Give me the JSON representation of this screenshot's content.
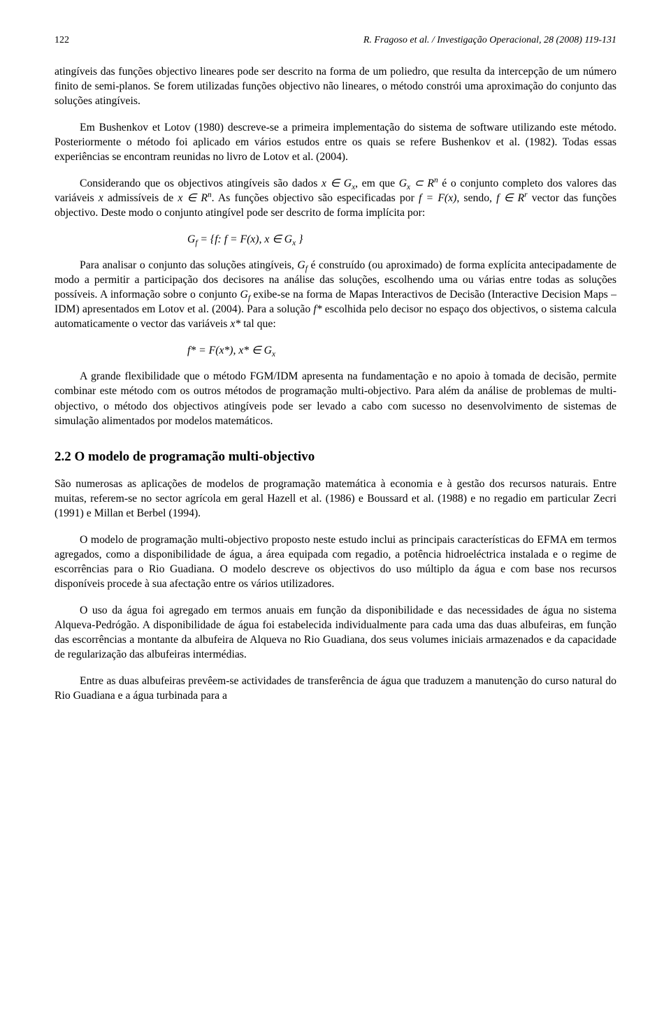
{
  "header": {
    "page_number": "122",
    "running_title": "R. Fragoso et al. / Investigação Operacional, 28 (2008) 119-131"
  },
  "paragraphs": {
    "p1": "atingíveis das funções objectivo lineares pode ser descrito na forma de um poliedro, que resulta da intercepção de um número finito de semi-planos. Se forem utilizadas funções objectivo não lineares, o método constrói uma aproximação do conjunto das soluções atingíveis.",
    "p2": "Em Bushenkov et Lotov (1980) descreve-se a primeira implementação do sistema de software utilizando este método. Posteriormente o método foi aplicado em vários estudos entre os quais se refere Bushenkov et al. (1982). Todas essas experiências se encontram reunidas no livro de Lotov et al. (2004).",
    "p5": "Para analisar o conjunto das soluções atingíveis, ",
    "p5b": " é construído (ou aproximado) de forma explícita antecipadamente de modo a permitir a participação dos decisores na análise das soluções, escolhendo uma ou várias entre todas as soluções possíveis. A informação sobre o conjunto ",
    "p5c": " exibe-se na forma de Mapas Interactivos de Decisão (Interactive Decision Maps – IDM) apresentados em Lotov et al. (2004). Para a solução ",
    "p5d": " escolhida pelo decisor no espaço dos objectivos, o sistema calcula automaticamente o vector das variáveis ",
    "p5e": " tal que:",
    "p7": "A grande flexibilidade que o método FGM/IDM apresenta na fundamentação e no apoio à tomada de decisão, permite combinar este método com os outros métodos de programação multi-objectivo. Para além da análise de problemas de multi-objectivo, o método dos objectivos atingíveis pode ser levado a cabo com sucesso no desenvolvimento de sistemas de simulação alimentados por modelos matemáticos.",
    "sec_title": "2.2  O modelo de programação multi-objectivo",
    "p8": "São numerosas as aplicações de modelos de programação matemática à economia e à gestão dos recursos naturais. Entre muitas, referem-se no sector agrícola em geral Hazell et al. (1986) e Boussard et al. (1988) e no regadio em particular Zecri (1991) e Millan et Berbel (1994).",
    "p9": "O modelo de programação multi-objectivo proposto neste estudo inclui as principais características do EFMA em termos agregados, como a disponibilidade de água, a área equipada com regadio, a potência hidroeléctrica instalada e o regime de escorrências para o Rio Guadiana. O modelo descreve os objectivos do uso múltiplo da água e com base nos recursos disponíveis procede à sua afectação entre os vários utilizadores.",
    "p10": "O uso da água foi agregado em termos anuais em função da disponibilidade e das necessidades de água no sistema Alqueva-Pedrógão. A disponibilidade de água foi estabelecida individualmente para cada uma das duas albufeiras, em função das escorrências a montante da albufeira de Alqueva no Rio Guadiana, dos seus volumes iniciais armazenados e da capacidade de regularização das albufeiras intermédias.",
    "p11": "Entre as duas albufeiras prevêem-se actividades de transferência de água que traduzem a manutenção do curso natural do Rio Guadiana e a água turbinada para a"
  },
  "inline": {
    "p3_a": "Considerando que os objectivos atingíveis são dados ",
    "p3_b": ", em que ",
    "p3_c": " é o conjunto completo dos valores das variáveis ",
    "p3_d": " admissíveis de ",
    "p3_e": ". As funções objectivo são especificadas por ",
    "p3_f": ", sendo, ",
    "p3_g": " vector das funções objectivo. Deste modo o conjunto atingível pode ser descrito de forma implícita por:",
    "x": "x",
    "Gx": "G",
    "xsub": "x",
    "sub_f": "f",
    "Rn": "R",
    "n": "n",
    "r": "r",
    "f_eq_Fx": "f = F(x)",
    "f": "f",
    "element": " ∈ ",
    "subset": " ⊂ ",
    "fstar": "f*",
    "xstar": "x*",
    "formula1a": "G",
    "formula1b": " = {f:  f = F(x),   x ∈ G",
    "formula1c": " }",
    "formula2": "f* = F(x*),   x* ∈ G"
  }
}
